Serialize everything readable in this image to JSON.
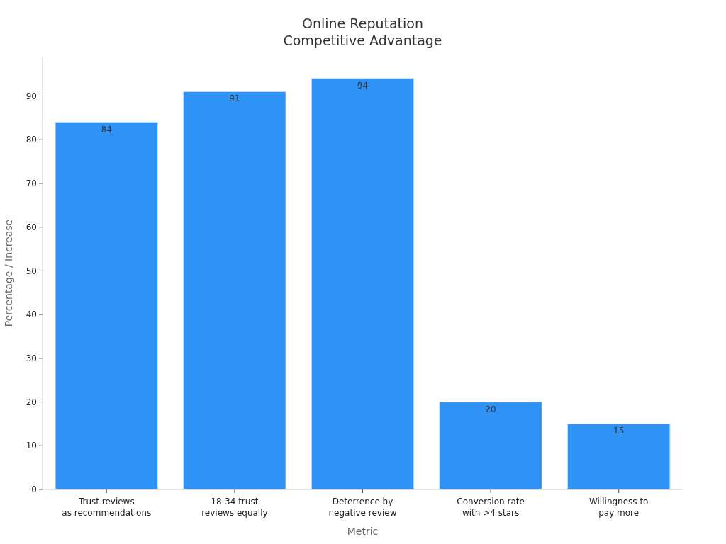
{
  "chart_data": {
    "type": "bar",
    "title": "Online Reputation\nCompetitive Advantage",
    "xlabel": "Metric",
    "ylabel": "Percentage / Increase",
    "categories": [
      "Trust reviews\nas recommendations",
      "18-34 trust\nreviews equally",
      "Deterrence by\nnegative review",
      "Conversion rate\nwith >4 stars",
      "Willingness to\npay more"
    ],
    "values": [
      84,
      91,
      94,
      20,
      15
    ],
    "color": "#2e93f5",
    "ylim": [
      0,
      99
    ],
    "yticks": [
      0,
      10,
      20,
      30,
      40,
      50,
      60,
      70,
      80,
      90
    ],
    "grid": false,
    "data_labels": true
  }
}
